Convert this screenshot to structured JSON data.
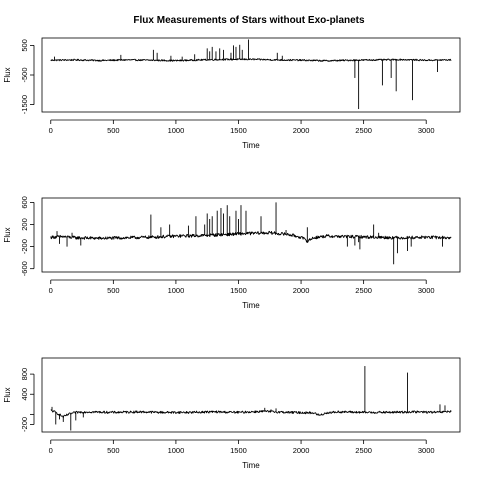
{
  "title": "Flux Measurements of Stars without Exo-planets",
  "chart_data": [
    {
      "type": "line",
      "xlabel": "Time",
      "ylabel": "Flux",
      "xlim": [
        -70,
        3270
      ],
      "ylim": [
        -1750,
        750
      ],
      "xticks": [
        0,
        500,
        1000,
        1500,
        2000,
        2500,
        3000
      ],
      "yticks": [
        500,
        -500,
        -1500
      ],
      "baseline": [
        [
          0,
          0
        ],
        [
          200,
          10
        ],
        [
          400,
          -10
        ],
        [
          600,
          10
        ],
        [
          800,
          0
        ],
        [
          1000,
          -15
        ],
        [
          1200,
          10
        ],
        [
          1400,
          25
        ],
        [
          1600,
          30
        ],
        [
          1800,
          10
        ],
        [
          2000,
          0
        ],
        [
          2200,
          -20
        ],
        [
          2400,
          0
        ],
        [
          2600,
          10
        ],
        [
          2800,
          20
        ],
        [
          3000,
          0
        ],
        [
          3200,
          10
        ]
      ],
      "noise": 25,
      "spikes": [
        [
          30,
          120
        ],
        [
          560,
          180
        ],
        [
          820,
          350
        ],
        [
          850,
          250
        ],
        [
          960,
          150
        ],
        [
          1050,
          120
        ],
        [
          1150,
          200
        ],
        [
          1250,
          400
        ],
        [
          1270,
          300
        ],
        [
          1290,
          450
        ],
        [
          1320,
          300
        ],
        [
          1350,
          400
        ],
        [
          1380,
          350
        ],
        [
          1440,
          250
        ],
        [
          1460,
          500
        ],
        [
          1480,
          450
        ],
        [
          1510,
          520
        ],
        [
          1530,
          350
        ],
        [
          1580,
          700
        ],
        [
          1810,
          250
        ],
        [
          1850,
          150
        ],
        [
          2430,
          -600
        ],
        [
          2460,
          -1650
        ],
        [
          2650,
          -850
        ],
        [
          2720,
          -600
        ],
        [
          2760,
          -1050
        ],
        [
          2890,
          -1350
        ],
        [
          3090,
          -400
        ]
      ]
    },
    {
      "type": "line",
      "xlabel": "Time",
      "ylabel": "Flux",
      "xlim": [
        -70,
        3270
      ],
      "ylim": [
        -660,
        680
      ],
      "xticks": [
        0,
        500,
        1000,
        1500,
        2000,
        2500,
        3000
      ],
      "yticks": [
        600,
        200,
        -200,
        -600
      ],
      "baseline": [
        [
          0,
          -30
        ],
        [
          100,
          -20
        ],
        [
          200,
          -40
        ],
        [
          400,
          -50
        ],
        [
          600,
          -40
        ],
        [
          800,
          -30
        ],
        [
          1000,
          -10
        ],
        [
          1200,
          0
        ],
        [
          1400,
          20
        ],
        [
          1600,
          40
        ],
        [
          1750,
          50
        ],
        [
          1900,
          20
        ],
        [
          2000,
          -30
        ],
        [
          2050,
          -100
        ],
        [
          2100,
          -40
        ],
        [
          2200,
          -10
        ],
        [
          2400,
          -20
        ],
        [
          2600,
          -30
        ],
        [
          2800,
          -40
        ],
        [
          3000,
          -30
        ],
        [
          3200,
          -40
        ]
      ],
      "noise": 28,
      "spikes": [
        [
          50,
          80
        ],
        [
          70,
          -150
        ],
        [
          130,
          -200
        ],
        [
          170,
          50
        ],
        [
          240,
          -180
        ],
        [
          800,
          380
        ],
        [
          880,
          150
        ],
        [
          950,
          200
        ],
        [
          1100,
          180
        ],
        [
          1160,
          350
        ],
        [
          1230,
          200
        ],
        [
          1250,
          400
        ],
        [
          1270,
          300
        ],
        [
          1290,
          350
        ],
        [
          1330,
          450
        ],
        [
          1360,
          500
        ],
        [
          1380,
          400
        ],
        [
          1410,
          550
        ],
        [
          1430,
          350
        ],
        [
          1480,
          450
        ],
        [
          1500,
          300
        ],
        [
          1520,
          550
        ],
        [
          1560,
          450
        ],
        [
          1680,
          350
        ],
        [
          1800,
          600
        ],
        [
          1880,
          100
        ],
        [
          2050,
          150
        ],
        [
          2370,
          -200
        ],
        [
          2430,
          -180
        ],
        [
          2460,
          -120
        ],
        [
          2470,
          -250
        ],
        [
          2580,
          200
        ],
        [
          2620,
          50
        ],
        [
          2680,
          -60
        ],
        [
          2740,
          -520
        ],
        [
          2770,
          -320
        ],
        [
          2850,
          -280
        ],
        [
          2880,
          -200
        ],
        [
          3130,
          -200
        ]
      ]
    },
    {
      "type": "line",
      "xlabel": "Time",
      "ylabel": "Flux",
      "xlim": [
        -70,
        3270
      ],
      "ylim": [
        -350,
        1120
      ],
      "xticks": [
        0,
        500,
        1000,
        1500,
        2000,
        2500,
        3000
      ],
      "yticks": [
        800,
        400,
        0,
        -200
      ],
      "ytick_labels": [
        "800",
        "400",
        "",
        "-200"
      ],
      "baseline": [
        [
          0,
          80
        ],
        [
          30,
          50
        ],
        [
          60,
          10
        ],
        [
          100,
          -50
        ],
        [
          140,
          0
        ],
        [
          200,
          40
        ],
        [
          300,
          50
        ],
        [
          500,
          40
        ],
        [
          700,
          50
        ],
        [
          900,
          40
        ],
        [
          1100,
          40
        ],
        [
          1300,
          50
        ],
        [
          1500,
          40
        ],
        [
          1700,
          60
        ],
        [
          1900,
          40
        ],
        [
          2100,
          30
        ],
        [
          2150,
          -20
        ],
        [
          2200,
          30
        ],
        [
          2300,
          50
        ],
        [
          2500,
          40
        ],
        [
          2700,
          40
        ],
        [
          2900,
          50
        ],
        [
          3100,
          40
        ],
        [
          3200,
          60
        ]
      ],
      "noise": 22,
      "spikes": [
        [
          10,
          150
        ],
        [
          40,
          -200
        ],
        [
          70,
          -100
        ],
        [
          100,
          -150
        ],
        [
          160,
          -320
        ],
        [
          200,
          -120
        ],
        [
          260,
          -60
        ],
        [
          1710,
          130
        ],
        [
          1760,
          100
        ],
        [
          1800,
          120
        ],
        [
          2510,
          960
        ],
        [
          2850,
          830
        ],
        [
          3110,
          200
        ],
        [
          3150,
          180
        ]
      ]
    }
  ]
}
